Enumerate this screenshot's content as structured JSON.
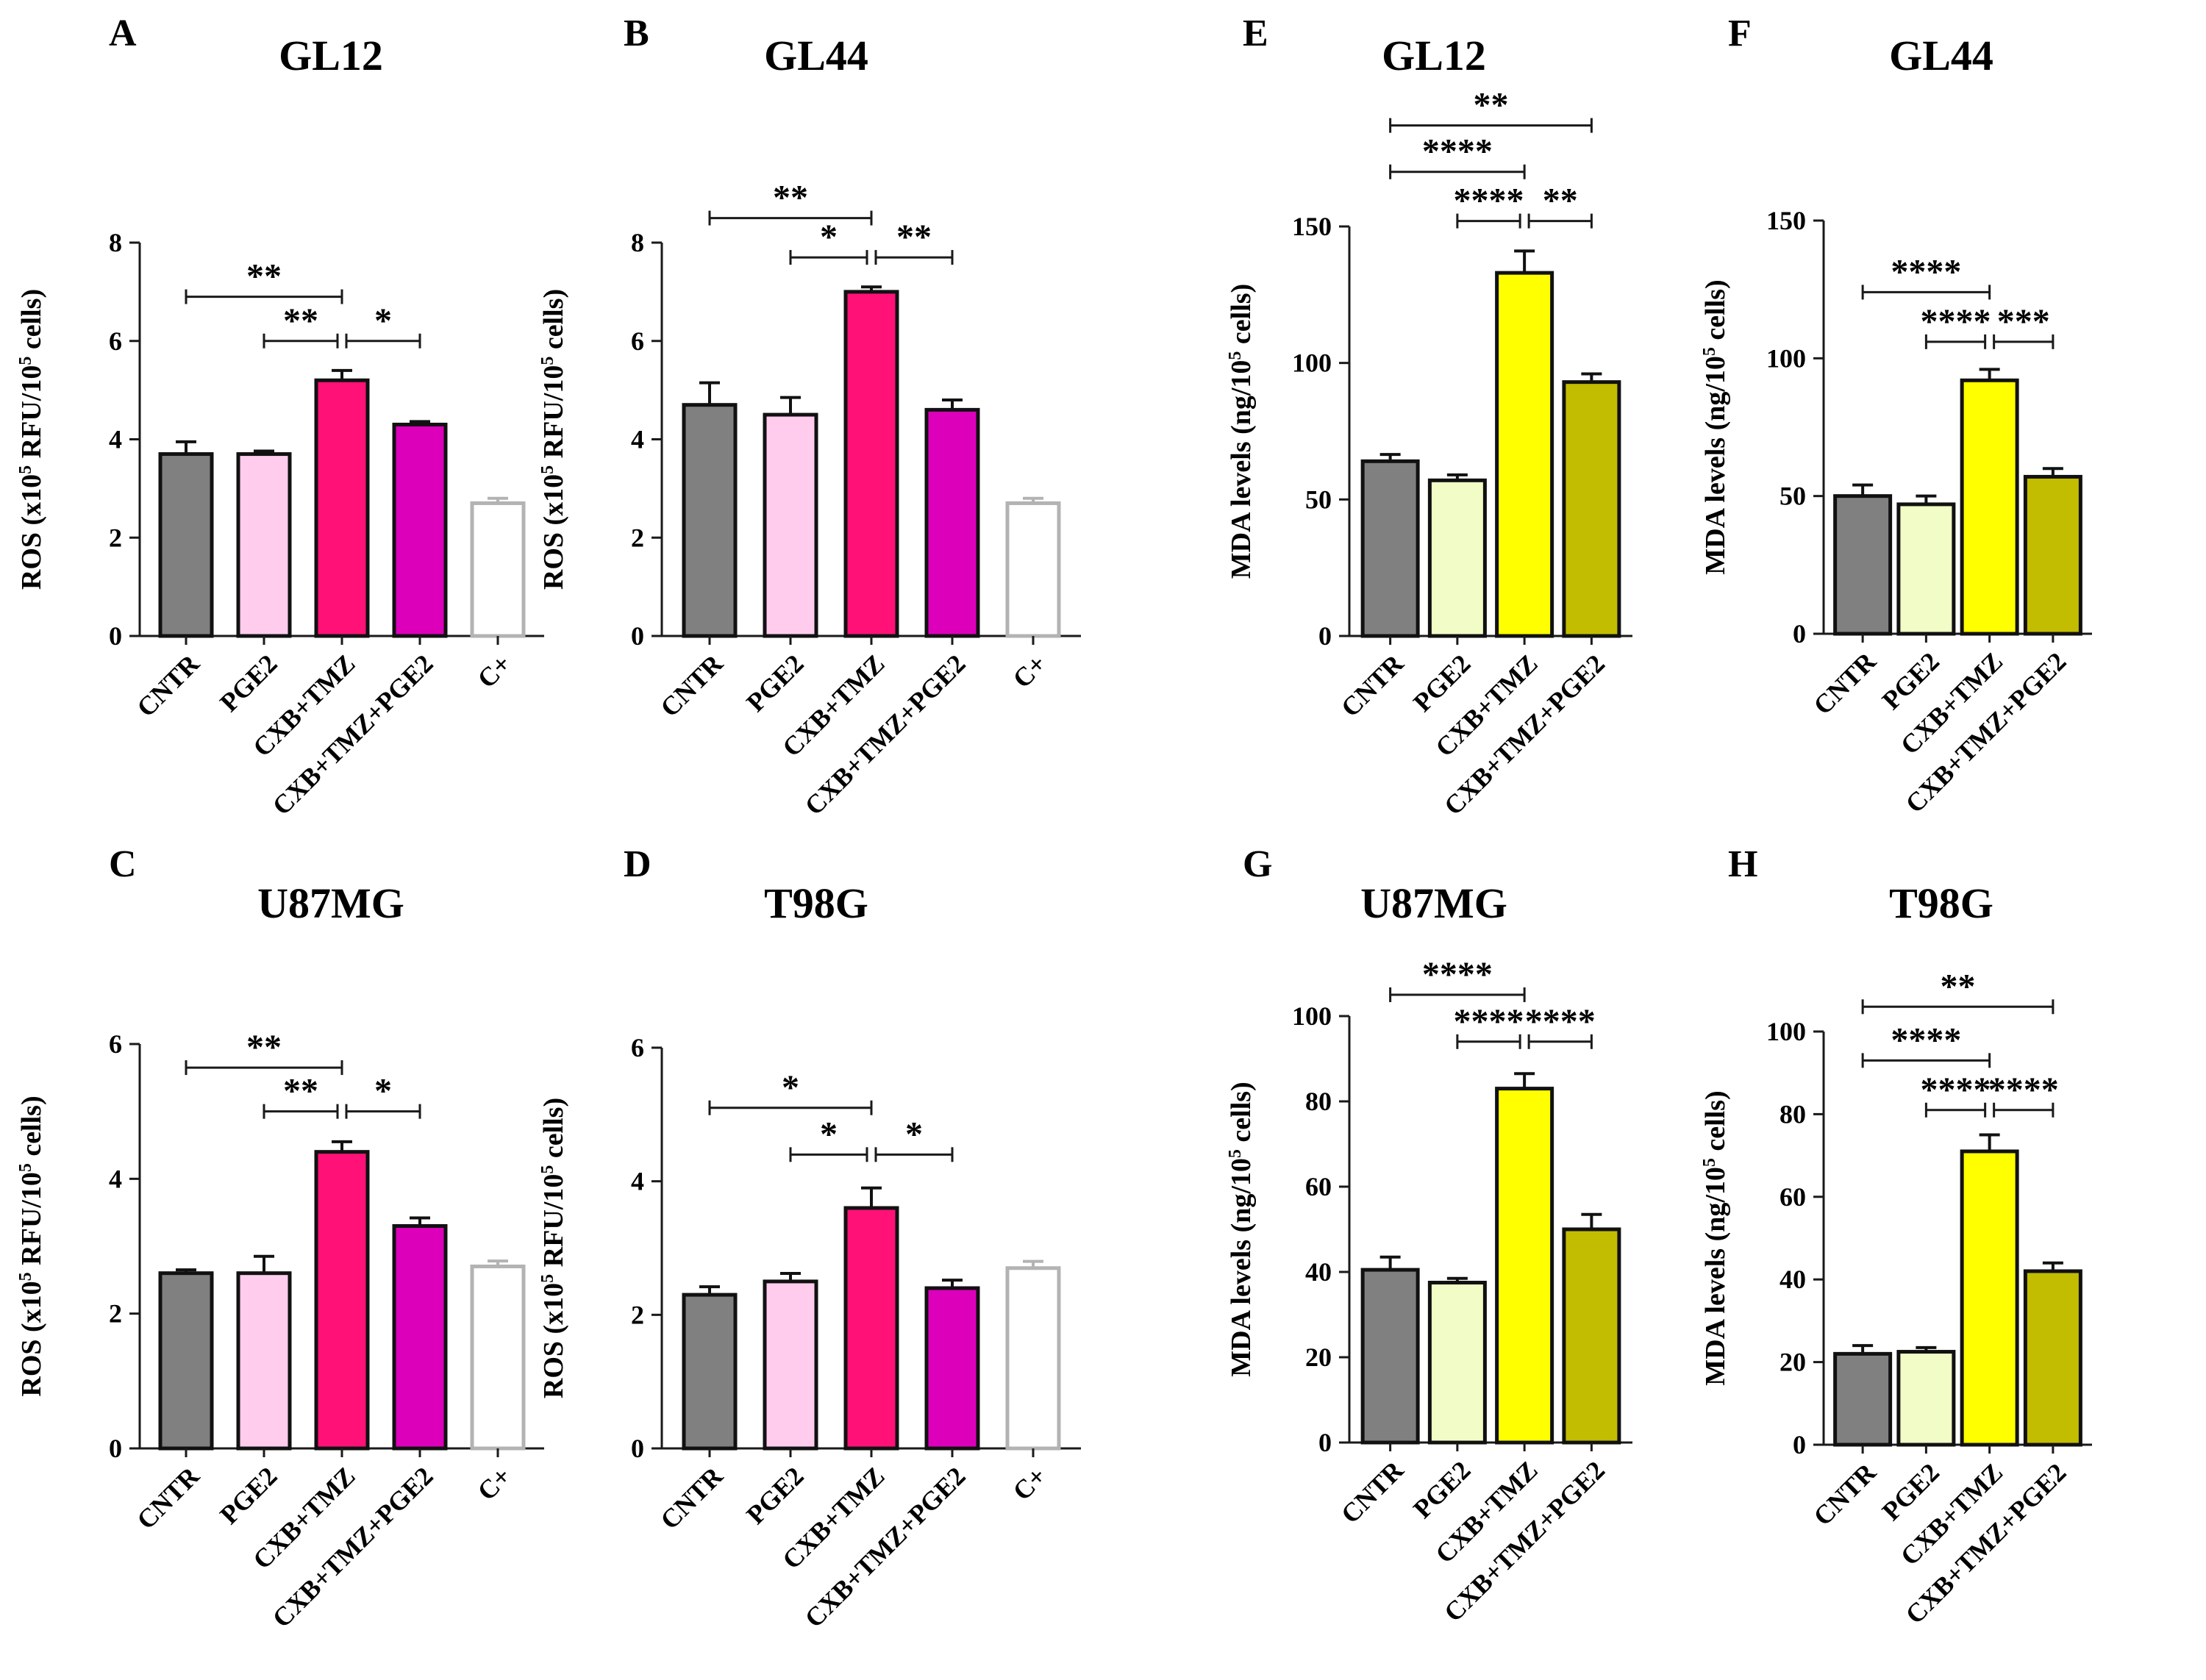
{
  "chart_data": [
    {
      "panel": "A",
      "title": "GL12",
      "type": "bar",
      "ylabel": "ROS (x10^5 RFU/10^5 cells)",
      "ylim": [
        0,
        8
      ],
      "yticks": [
        0,
        2,
        4,
        6,
        8
      ],
      "categories": [
        "CNTR",
        "PGE2",
        "CXB+TMZ",
        "CXB+TMZ+PGE2",
        "C+"
      ],
      "values": [
        3.7,
        3.7,
        5.2,
        4.3,
        2.7
      ],
      "errors": [
        0.25,
        0.06,
        0.2,
        0.06,
        0.1
      ],
      "colors": [
        "#808080",
        "#ffccee",
        "#ff1177",
        "#dd00bb",
        "#ffffff"
      ],
      "edges": [
        "#111111",
        "#111111",
        "#111111",
        "#111111",
        "#b3b3b3"
      ],
      "significance": [
        {
          "from": 0,
          "to": 2,
          "label": "**",
          "y": 6.9
        },
        {
          "from": 1,
          "to": 2,
          "label": "**",
          "y": 6.0
        },
        {
          "from": 2,
          "to": 3,
          "label": "*",
          "y": 6.0
        }
      ]
    },
    {
      "panel": "B",
      "title": "GL44",
      "type": "bar",
      "ylabel": "ROS (x10^5 RFU/10^5 cells)",
      "ylim": [
        0,
        8
      ],
      "yticks": [
        0,
        2,
        4,
        6,
        8
      ],
      "categories": [
        "CNTR",
        "PGE2",
        "CXB+TMZ",
        "CXB+TMZ+PGE2",
        "C+"
      ],
      "values": [
        4.7,
        4.5,
        7.0,
        4.6,
        2.7
      ],
      "errors": [
        0.45,
        0.35,
        0.1,
        0.2,
        0.1
      ],
      "colors": [
        "#808080",
        "#ffccee",
        "#ff1177",
        "#dd00bb",
        "#ffffff"
      ],
      "edges": [
        "#111111",
        "#111111",
        "#111111",
        "#111111",
        "#b3b3b3"
      ],
      "significance": [
        {
          "from": 0,
          "to": 2,
          "label": "**",
          "y": 8.5
        },
        {
          "from": 1,
          "to": 2,
          "label": "*",
          "y": 7.7
        },
        {
          "from": 2,
          "to": 3,
          "label": "**",
          "y": 7.7
        }
      ]
    },
    {
      "panel": "C",
      "title": "U87MG",
      "type": "bar",
      "ylabel": "ROS (x10^5 RFU/10^5 cells)",
      "ylim": [
        0,
        6
      ],
      "yticks": [
        0,
        2,
        4,
        6
      ],
      "categories": [
        "CNTR",
        "PGE2",
        "CXB+TMZ",
        "CXB+TMZ+PGE2",
        "C+"
      ],
      "values": [
        2.6,
        2.6,
        4.4,
        3.3,
        2.7
      ],
      "errors": [
        0.05,
        0.25,
        0.15,
        0.12,
        0.08
      ],
      "colors": [
        "#808080",
        "#ffccee",
        "#ff1177",
        "#dd00bb",
        "#ffffff"
      ],
      "edges": [
        "#111111",
        "#111111",
        "#111111",
        "#111111",
        "#b3b3b3"
      ],
      "significance": [
        {
          "from": 0,
          "to": 2,
          "label": "**",
          "y": 5.65
        },
        {
          "from": 1,
          "to": 2,
          "label": "**",
          "y": 5.0
        },
        {
          "from": 2,
          "to": 3,
          "label": "*",
          "y": 5.0
        }
      ]
    },
    {
      "panel": "D",
      "title": "T98G",
      "type": "bar",
      "ylabel": "ROS (x10^5 RFU/10^5 cells)",
      "ylim": [
        0,
        6
      ],
      "yticks": [
        0,
        2,
        4,
        6
      ],
      "categories": [
        "CNTR",
        "PGE2",
        "CXB+TMZ",
        "CXB+TMZ+PGE2",
        "C+"
      ],
      "values": [
        2.3,
        2.5,
        3.6,
        2.4,
        2.7
      ],
      "errors": [
        0.12,
        0.12,
        0.3,
        0.12,
        0.1
      ],
      "colors": [
        "#808080",
        "#ffccee",
        "#ff1177",
        "#dd00bb",
        "#ffffff"
      ],
      "edges": [
        "#111111",
        "#111111",
        "#111111",
        "#111111",
        "#b3b3b3"
      ],
      "significance": [
        {
          "from": 0,
          "to": 2,
          "label": "*",
          "y": 5.1
        },
        {
          "from": 1,
          "to": 2,
          "label": "*",
          "y": 4.4
        },
        {
          "from": 2,
          "to": 3,
          "label": "*",
          "y": 4.4
        }
      ]
    },
    {
      "panel": "E",
      "title": "GL12",
      "type": "bar",
      "ylabel": "MDA levels (ng/10^5 cells)",
      "ylim": [
        0,
        150
      ],
      "yticks": [
        0,
        50,
        100,
        150
      ],
      "categories": [
        "CNTR",
        "PGE2",
        "CXB+TMZ",
        "CXB+TMZ+PGE2"
      ],
      "values": [
        64,
        57,
        133,
        93
      ],
      "errors": [
        2.5,
        2,
        8,
        3
      ],
      "colors": [
        "#808080",
        "#f2fcc6",
        "#ffff00",
        "#c2bd00"
      ],
      "edges": [
        "#111111",
        "#111111",
        "#111111",
        "#111111"
      ],
      "significance": [
        {
          "from": 0,
          "to": 3,
          "label": "**",
          "y": 187
        },
        {
          "from": 0,
          "to": 2,
          "label": "****",
          "y": 170
        },
        {
          "from": 1,
          "to": 2,
          "label": "****",
          "y": 152
        },
        {
          "from": 2,
          "to": 3,
          "label": "**",
          "y": 152
        }
      ]
    },
    {
      "panel": "F",
      "title": "GL44",
      "type": "bar",
      "ylabel": "MDA levels (ng/10^5 cells)",
      "ylim": [
        0,
        150
      ],
      "yticks": [
        0,
        50,
        100,
        150
      ],
      "categories": [
        "CNTR",
        "PGE2",
        "CXB+TMZ",
        "CXB+TMZ+PGE2"
      ],
      "values": [
        50,
        47,
        92,
        57
      ],
      "errors": [
        4,
        3,
        4,
        3
      ],
      "colors": [
        "#808080",
        "#f2fcc6",
        "#ffff00",
        "#c2bd00"
      ],
      "edges": [
        "#111111",
        "#111111",
        "#111111",
        "#111111"
      ],
      "significance": [
        {
          "from": 0,
          "to": 2,
          "label": "****",
          "y": 124
        },
        {
          "from": 1,
          "to": 2,
          "label": "****",
          "y": 106
        },
        {
          "from": 2,
          "to": 3,
          "label": "***",
          "y": 106
        }
      ]
    },
    {
      "panel": "G",
      "title": "U87MG",
      "type": "bar",
      "ylabel": "MDA levels (ng/10^5 cells)",
      "ylim": [
        0,
        100
      ],
      "yticks": [
        0,
        20,
        40,
        60,
        80,
        100
      ],
      "categories": [
        "CNTR",
        "PGE2",
        "CXB+TMZ",
        "CXB+TMZ+PGE2"
      ],
      "values": [
        40.5,
        37.5,
        83,
        50
      ],
      "errors": [
        3,
        1,
        3.5,
        3.5
      ],
      "colors": [
        "#808080",
        "#f2fcc6",
        "#ffff00",
        "#c2bd00"
      ],
      "edges": [
        "#111111",
        "#111111",
        "#111111",
        "#111111"
      ],
      "significance": [
        {
          "from": 0,
          "to": 2,
          "label": "****",
          "y": 105
        },
        {
          "from": 1,
          "to": 2,
          "label": "****",
          "y": 94
        },
        {
          "from": 2,
          "to": 3,
          "label": "****",
          "y": 94
        }
      ]
    },
    {
      "panel": "H",
      "title": "T98G",
      "type": "bar",
      "ylabel": "MDA levels (ng/10^5 cells)",
      "ylim": [
        0,
        100
      ],
      "yticks": [
        0,
        20,
        40,
        60,
        80,
        100
      ],
      "categories": [
        "CNTR",
        "PGE2",
        "CXB+TMZ",
        "CXB+TMZ+PGE2"
      ],
      "values": [
        22,
        22.5,
        71,
        42
      ],
      "errors": [
        2,
        1,
        4,
        2
      ],
      "colors": [
        "#808080",
        "#f2fcc6",
        "#ffff00",
        "#c2bd00"
      ],
      "edges": [
        "#111111",
        "#111111",
        "#111111",
        "#111111"
      ],
      "significance": [
        {
          "from": 0,
          "to": 3,
          "label": "**",
          "y": 106
        },
        {
          "from": 0,
          "to": 2,
          "label": "****",
          "y": 93
        },
        {
          "from": 1,
          "to": 2,
          "label": "****",
          "y": 81
        },
        {
          "from": 2,
          "to": 3,
          "label": "****",
          "y": 81
        }
      ]
    }
  ]
}
